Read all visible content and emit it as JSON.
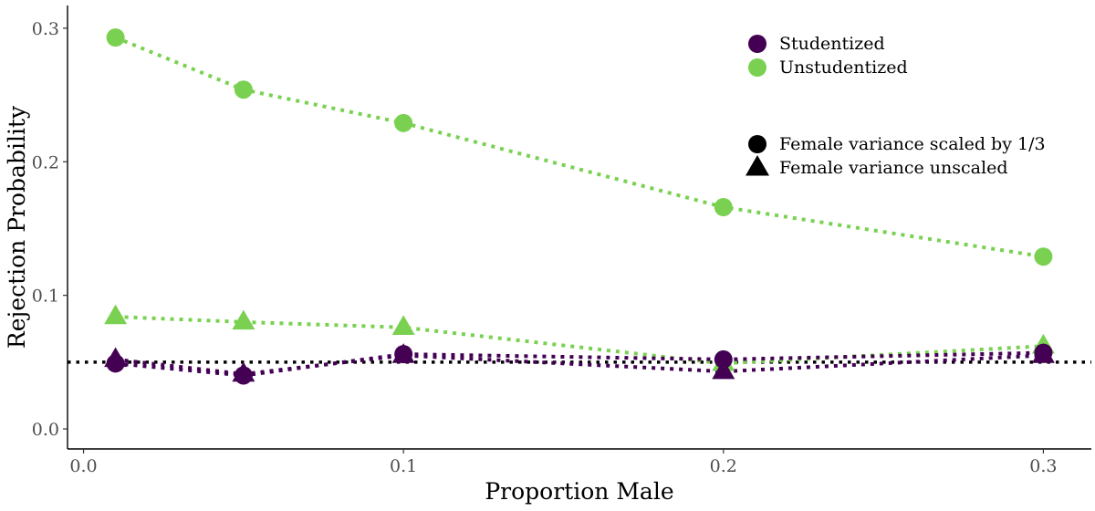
{
  "chart_data": {
    "type": "line",
    "xlabel": "Proportion Male",
    "ylabel": "Rejection Probability",
    "xlim": [
      -0.005,
      0.315
    ],
    "ylim": [
      -0.015,
      0.317
    ],
    "x_ticks": [
      0.0,
      0.1,
      0.2,
      0.3
    ],
    "x_tick_labels": [
      "0.0",
      "0.1",
      "0.2",
      "0.3"
    ],
    "y_ticks": [
      0.0,
      0.1,
      0.2,
      0.3
    ],
    "y_tick_labels": [
      "0.0",
      "0.1",
      "0.2",
      "0.3"
    ],
    "grid": false,
    "legend_position": "top-right",
    "reference_line": {
      "y": 0.05,
      "style": "dotted",
      "color": "#000000"
    },
    "colors": {
      "Studentized": "#440154",
      "Unstudentized": "#7AD151"
    },
    "color_legend": [
      "Studentized",
      "Unstudentized"
    ],
    "shape_legend": [
      {
        "label": "Female variance scaled by 1/3",
        "shape": "circle"
      },
      {
        "label": "Female variance unscaled",
        "shape": "triangle"
      }
    ],
    "series": [
      {
        "color_group": "Unstudentized",
        "shape": "circle",
        "x": [
          0.01,
          0.05,
          0.1,
          0.2,
          0.3
        ],
        "y": [
          0.293,
          0.254,
          0.229,
          0.166,
          0.129
        ]
      },
      {
        "color_group": "Unstudentized",
        "shape": "triangle",
        "x": [
          0.01,
          0.05,
          0.1,
          0.2,
          0.3
        ],
        "y": [
          0.084,
          0.08,
          0.076,
          0.049,
          0.062
        ]
      },
      {
        "color_group": "Studentized",
        "shape": "circle",
        "x": [
          0.01,
          0.05,
          0.1,
          0.2,
          0.3
        ],
        "y": [
          0.049,
          0.04,
          0.056,
          0.052,
          0.057
        ]
      },
      {
        "color_group": "Studentized",
        "shape": "triangle",
        "x": [
          0.01,
          0.05,
          0.1,
          0.2,
          0.3
        ],
        "y": [
          0.052,
          0.041,
          0.055,
          0.043,
          0.055
        ]
      }
    ]
  }
}
